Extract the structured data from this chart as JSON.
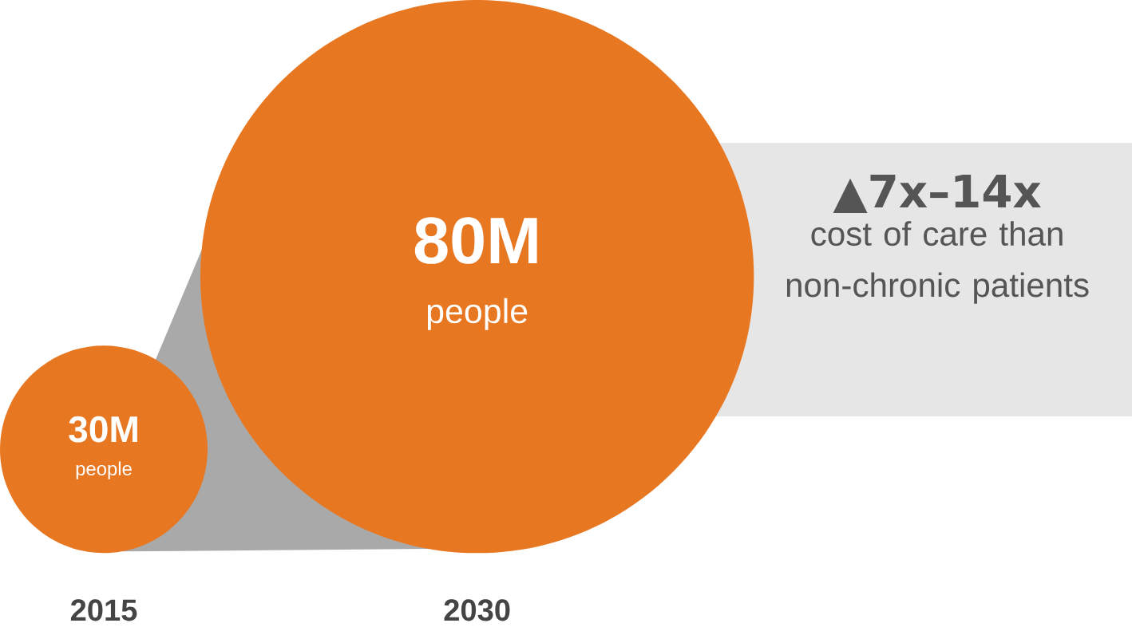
{
  "chart_data": {
    "type": "other",
    "categories": [
      "2015",
      "2030"
    ],
    "values": [
      30,
      80
    ],
    "value_labels": [
      "30M",
      "80M"
    ],
    "color": "#e87722",
    "annotations": [
      "people",
      "people",
      "▲7x–14x",
      "cost of care than non-chronic patients"
    ]
  }
}
